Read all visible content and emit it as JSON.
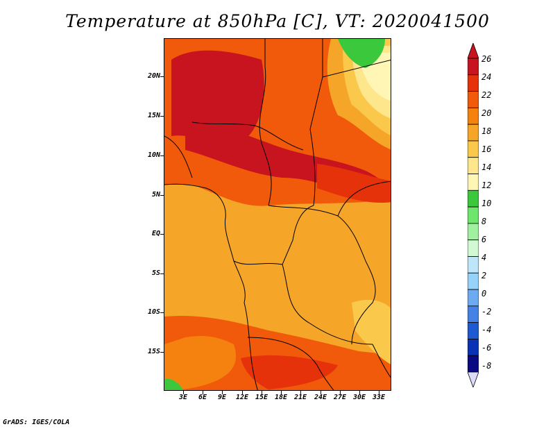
{
  "title": "Temperature at 850hPa [C], VT: 2020041500",
  "credit": "GrADS: IGES/COLA",
  "y_axis_labels": [
    "20N",
    "15N",
    "10N",
    "5N",
    "EQ",
    "5S",
    "10S",
    "15S"
  ],
  "x_axis_labels": [
    "3E",
    "6E",
    "9E",
    "12E",
    "15E",
    "18E",
    "21E",
    "24E",
    "27E",
    "30E",
    "33E"
  ],
  "colorbar": {
    "labels": [
      "26",
      "24",
      "22",
      "20",
      "18",
      "16",
      "14",
      "12",
      "10",
      "8",
      "6",
      "4",
      "2",
      "0",
      "-2",
      "-4",
      "-6",
      "-8"
    ],
    "colors": [
      "#c8141e",
      "#e6320a",
      "#f05a0a",
      "#f5820f",
      "#f5a528",
      "#fac84b",
      "#fde68c",
      "#fff5b4",
      "#3cc83c",
      "#6ee66e",
      "#a0f0a0",
      "#d2fad2",
      "#bee6fa",
      "#96d2fa",
      "#6eaaf0",
      "#4682e6",
      "#1e5ad2",
      "#0a32b4",
      "#0a0a82"
    ],
    "under_color": "#dcdcfa",
    "over_color": "#c8141e"
  }
}
